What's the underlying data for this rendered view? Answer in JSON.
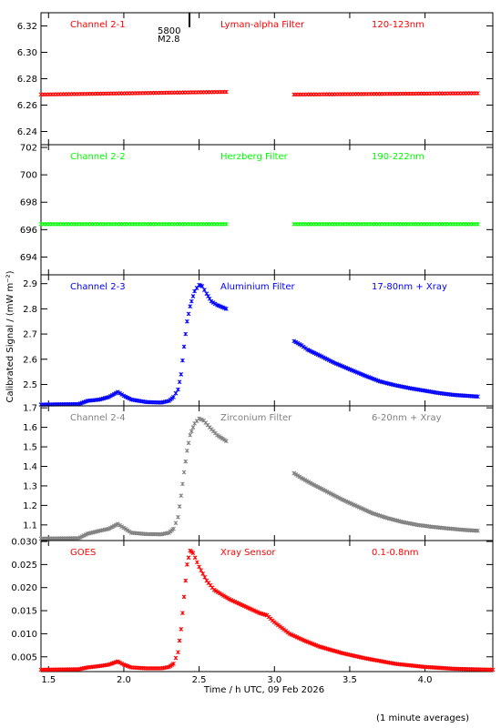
{
  "figure": {
    "ylabel": "Calibrated Signal / (mW m⁻²)",
    "xlabel": "Time / h UTC, 09 Feb 2026",
    "footnote": "(1 minute averages)",
    "event_label_top": "5800",
    "event_label_bottom": "M2.8",
    "x_ticks": [
      "1.5",
      "2.0",
      "2.5",
      "3.0",
      "3.5",
      "4.0"
    ]
  },
  "chart_data": [
    {
      "type": "scatter",
      "channel": "Channel 2-1",
      "filter": "Lyman-alpha Filter",
      "band": "120-123nm",
      "color": "#ff0000",
      "xlim": [
        1.45,
        4.45
      ],
      "ylim": [
        6.23,
        6.33
      ],
      "yticks": [
        "6.24",
        "6.26",
        "6.28",
        "6.30",
        "6.32"
      ],
      "segments": [
        {
          "x": [
            1.45,
            2.68
          ],
          "y": [
            6.268,
            6.27
          ]
        },
        {
          "x": [
            3.13,
            4.35
          ],
          "y": [
            6.268,
            6.269
          ]
        }
      ]
    },
    {
      "type": "scatter",
      "channel": "Channel 2-2",
      "filter": "Herzberg Filter",
      "band": "190-222nm",
      "color": "#00ff00",
      "xlim": [
        1.45,
        4.45
      ],
      "ylim": [
        692.7,
        702.2
      ],
      "yticks": [
        "694",
        "696",
        "698",
        "700",
        "702"
      ],
      "segments": [
        {
          "x": [
            1.45,
            2.68
          ],
          "y": [
            696.4,
            696.4
          ]
        },
        {
          "x": [
            3.13,
            4.35
          ],
          "y": [
            696.4,
            696.4
          ]
        }
      ]
    },
    {
      "type": "scatter",
      "channel": "Channel 2-3",
      "filter": "Aluminium Filter",
      "band": "17-80nm + Xray",
      "color": "#0000ff",
      "xlim": [
        1.45,
        4.45
      ],
      "ylim": [
        2.415,
        2.935
      ],
      "yticks": [
        "2.5",
        "2.6",
        "2.7",
        "2.8",
        "2.9"
      ],
      "points": [
        [
          1.45,
          2.42
        ],
        [
          1.7,
          2.422
        ],
        [
          1.76,
          2.435
        ],
        [
          1.84,
          2.44
        ],
        [
          1.9,
          2.45
        ],
        [
          1.96,
          2.47
        ],
        [
          2.0,
          2.455
        ],
        [
          2.05,
          2.44
        ],
        [
          2.15,
          2.43
        ],
        [
          2.25,
          2.428
        ],
        [
          2.3,
          2.435
        ],
        [
          2.33,
          2.45
        ],
        [
          2.36,
          2.48
        ],
        [
          2.38,
          2.54
        ],
        [
          2.4,
          2.65
        ],
        [
          2.42,
          2.75
        ],
        [
          2.44,
          2.81
        ],
        [
          2.47,
          2.87
        ],
        [
          2.5,
          2.895
        ],
        [
          2.52,
          2.89
        ],
        [
          2.55,
          2.86
        ],
        [
          2.58,
          2.83
        ],
        [
          2.62,
          2.815
        ],
        [
          2.68,
          2.8
        ],
        [
          3.13,
          2.672
        ],
        [
          3.18,
          2.655
        ],
        [
          3.22,
          2.638
        ],
        [
          3.3,
          2.615
        ],
        [
          3.4,
          2.585
        ],
        [
          3.5,
          2.56
        ],
        [
          3.6,
          2.535
        ],
        [
          3.7,
          2.512
        ],
        [
          3.8,
          2.497
        ],
        [
          3.9,
          2.485
        ],
        [
          4.0,
          2.475
        ],
        [
          4.1,
          2.465
        ],
        [
          4.2,
          2.458
        ],
        [
          4.35,
          2.452
        ]
      ]
    },
    {
      "type": "scatter",
      "channel": "Channel 2-4",
      "filter": "Zirconium Filter",
      "band": "6-20nm + Xray",
      "color": "#808080",
      "xlim": [
        1.45,
        4.45
      ],
      "ylim": [
        1.02,
        1.71
      ],
      "yticks": [
        "1.1",
        "1.2",
        "1.3",
        "1.4",
        "1.5",
        "1.6",
        "1.7"
      ],
      "points": [
        [
          1.45,
          1.03
        ],
        [
          1.7,
          1.032
        ],
        [
          1.76,
          1.055
        ],
        [
          1.84,
          1.07
        ],
        [
          1.9,
          1.08
        ],
        [
          1.96,
          1.105
        ],
        [
          2.0,
          1.085
        ],
        [
          2.05,
          1.06
        ],
        [
          2.15,
          1.053
        ],
        [
          2.25,
          1.052
        ],
        [
          2.3,
          1.06
        ],
        [
          2.33,
          1.08
        ],
        [
          2.36,
          1.14
        ],
        [
          2.38,
          1.25
        ],
        [
          2.4,
          1.37
        ],
        [
          2.42,
          1.48
        ],
        [
          2.44,
          1.56
        ],
        [
          2.47,
          1.62
        ],
        [
          2.5,
          1.645
        ],
        [
          2.53,
          1.635
        ],
        [
          2.57,
          1.6
        ],
        [
          2.62,
          1.56
        ],
        [
          2.68,
          1.53
        ],
        [
          3.13,
          1.365
        ],
        [
          3.18,
          1.34
        ],
        [
          3.25,
          1.31
        ],
        [
          3.35,
          1.27
        ],
        [
          3.45,
          1.23
        ],
        [
          3.55,
          1.195
        ],
        [
          3.65,
          1.16
        ],
        [
          3.75,
          1.135
        ],
        [
          3.85,
          1.115
        ],
        [
          3.95,
          1.1
        ],
        [
          4.05,
          1.09
        ],
        [
          4.15,
          1.082
        ],
        [
          4.25,
          1.075
        ],
        [
          4.35,
          1.07
        ]
      ]
    },
    {
      "type": "scatter",
      "channel": "GOES",
      "filter": "Xray Sensor",
      "band": "0.1-0.8nm",
      "color": "#ff0000",
      "xlim": [
        1.45,
        4.45
      ],
      "ylim": [
        0.0018,
        0.0302
      ],
      "yticks": [
        "0.005",
        "0.010",
        "0.015",
        "0.020",
        "0.025",
        "0.030"
      ],
      "points": [
        [
          1.45,
          0.0022
        ],
        [
          1.7,
          0.0023
        ],
        [
          1.76,
          0.0027
        ],
        [
          1.84,
          0.003
        ],
        [
          1.9,
          0.0033
        ],
        [
          1.96,
          0.004
        ],
        [
          2.0,
          0.0033
        ],
        [
          2.05,
          0.0027
        ],
        [
          2.15,
          0.0025
        ],
        [
          2.25,
          0.0025
        ],
        [
          2.3,
          0.0028
        ],
        [
          2.33,
          0.0035
        ],
        [
          2.36,
          0.006
        ],
        [
          2.38,
          0.011
        ],
        [
          2.4,
          0.018
        ],
        [
          2.42,
          0.025
        ],
        [
          2.44,
          0.028
        ],
        [
          2.46,
          0.0275
        ],
        [
          2.5,
          0.0245
        ],
        [
          2.55,
          0.0215
        ],
        [
          2.6,
          0.0195
        ],
        [
          2.7,
          0.0175
        ],
        [
          2.8,
          0.016
        ],
        [
          2.9,
          0.0145
        ],
        [
          2.95,
          0.014
        ],
        [
          3.0,
          0.0125
        ],
        [
          3.1,
          0.01
        ],
        [
          3.2,
          0.0085
        ],
        [
          3.3,
          0.0072
        ],
        [
          3.45,
          0.0058
        ],
        [
          3.6,
          0.0047
        ],
        [
          3.8,
          0.0035
        ],
        [
          4.0,
          0.0028
        ],
        [
          4.2,
          0.0024
        ],
        [
          4.45,
          0.0022
        ]
      ]
    }
  ]
}
